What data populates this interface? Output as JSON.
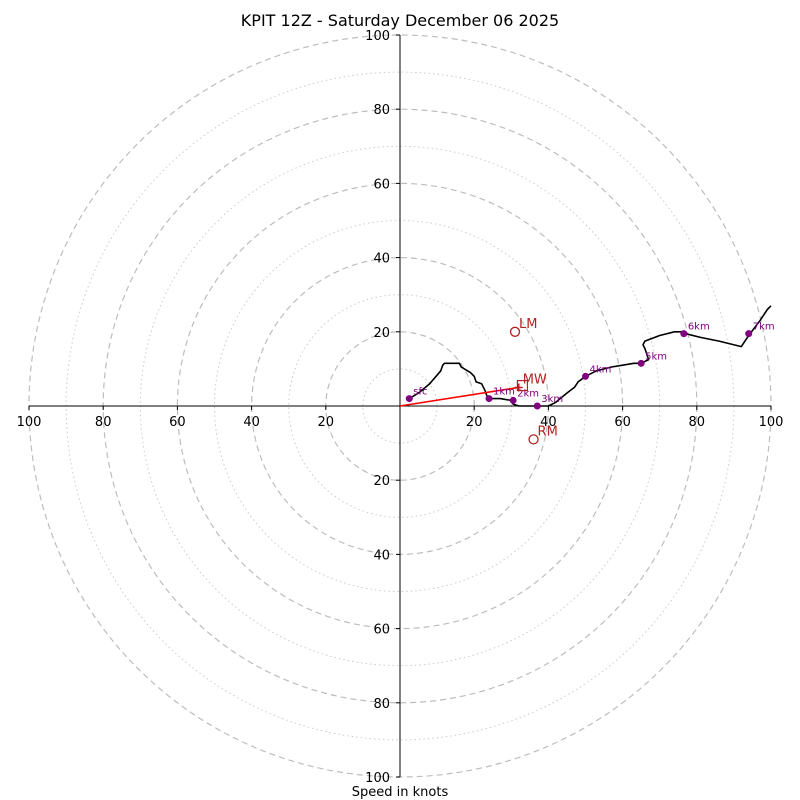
{
  "chart_data": {
    "type": "hodograph",
    "title": "KPIT 12Z - Saturday December 06 2025",
    "xlabel": "Speed in knots",
    "range": 100,
    "major_rings": [
      20,
      40,
      60,
      80,
      100
    ],
    "minor_rings": [
      10,
      30,
      50,
      70,
      90
    ],
    "x_ticks": [
      {
        "value": -100,
        "label": "100"
      },
      {
        "value": -80,
        "label": "80"
      },
      {
        "value": -60,
        "label": "60"
      },
      {
        "value": -40,
        "label": "40"
      },
      {
        "value": -20,
        "label": "20"
      },
      {
        "value": 20,
        "label": "20"
      },
      {
        "value": 40,
        "label": "40"
      },
      {
        "value": 60,
        "label": "60"
      },
      {
        "value": 80,
        "label": "80"
      },
      {
        "value": 100,
        "label": "100"
      }
    ],
    "y_ticks": [
      {
        "value": 100,
        "label": "100"
      },
      {
        "value": 80,
        "label": "80"
      },
      {
        "value": 60,
        "label": "60"
      },
      {
        "value": 40,
        "label": "40"
      },
      {
        "value": 20,
        "label": "20"
      },
      {
        "value": -20,
        "label": "20"
      },
      {
        "value": -40,
        "label": "40"
      },
      {
        "value": -60,
        "label": "60"
      },
      {
        "value": -80,
        "label": "80"
      },
      {
        "value": -100,
        "label": "100"
      }
    ],
    "trace": [
      [
        2.5,
        2
      ],
      [
        5,
        3.5
      ],
      [
        8,
        6
      ],
      [
        11,
        9.5
      ],
      [
        11.5,
        11
      ],
      [
        12,
        11.5
      ],
      [
        16,
        11.5
      ],
      [
        16.5,
        10.5
      ],
      [
        19,
        9
      ],
      [
        20,
        8
      ],
      [
        20.5,
        6.5
      ],
      [
        22,
        6
      ],
      [
        23,
        4
      ],
      [
        23.5,
        2.5
      ],
      [
        24,
        2
      ],
      [
        27,
        2
      ],
      [
        30,
        1.5
      ],
      [
        30.5,
        0.5
      ],
      [
        32,
        0
      ],
      [
        37,
        0
      ],
      [
        40,
        0
      ],
      [
        42,
        1
      ],
      [
        45,
        3.5
      ],
      [
        47,
        5
      ],
      [
        48,
        6.5
      ],
      [
        50,
        8
      ],
      [
        53,
        9.5
      ],
      [
        57,
        10.5
      ],
      [
        60,
        11
      ],
      [
        63,
        11.5
      ],
      [
        65,
        11.5
      ],
      [
        67,
        12.5
      ],
      [
        66,
        15.5
      ],
      [
        65.5,
        16.5
      ],
      [
        66,
        17.5
      ],
      [
        70,
        19
      ],
      [
        74,
        20
      ],
      [
        76,
        20
      ],
      [
        77,
        19.5
      ],
      [
        81,
        18.5
      ],
      [
        86,
        17.5
      ],
      [
        92,
        16
      ],
      [
        94,
        19
      ],
      [
        97,
        23
      ],
      [
        99,
        26
      ],
      [
        100,
        27
      ]
    ],
    "height_points": [
      {
        "label": "sfc",
        "u": 2.5,
        "v": 2
      },
      {
        "label": "1km",
        "u": 24,
        "v": 2
      },
      {
        "label": "2km",
        "u": 30.5,
        "v": 1.5
      },
      {
        "label": "3km",
        "u": 37,
        "v": 0
      },
      {
        "label": "4km",
        "u": 50,
        "v": 8
      },
      {
        "label": "5km",
        "u": 65,
        "v": 11.5
      },
      {
        "label": "6km",
        "u": 76.5,
        "v": 19.5
      },
      {
        "label": "7km",
        "u": 94,
        "v": 19.5
      }
    ],
    "storm_markers": [
      {
        "label": "LM",
        "u": 31,
        "v": 20,
        "shape": "circle"
      },
      {
        "label": "RM",
        "u": 36,
        "v": -9,
        "shape": "circle"
      },
      {
        "label": "MW",
        "u": 32,
        "v": 5,
        "shape": "cross"
      },
      {
        "label": "",
        "u": 33,
        "v": 5.5,
        "shape": "square"
      }
    ],
    "shear_vector": {
      "from": [
        0,
        0
      ],
      "to": [
        32,
        5
      ]
    },
    "colors": {
      "trace": "#000000",
      "height_points": "#800080",
      "markers": "#b22222",
      "shear": "#ff0000",
      "grid": "#bdbdbd",
      "axis": "#000000"
    }
  }
}
